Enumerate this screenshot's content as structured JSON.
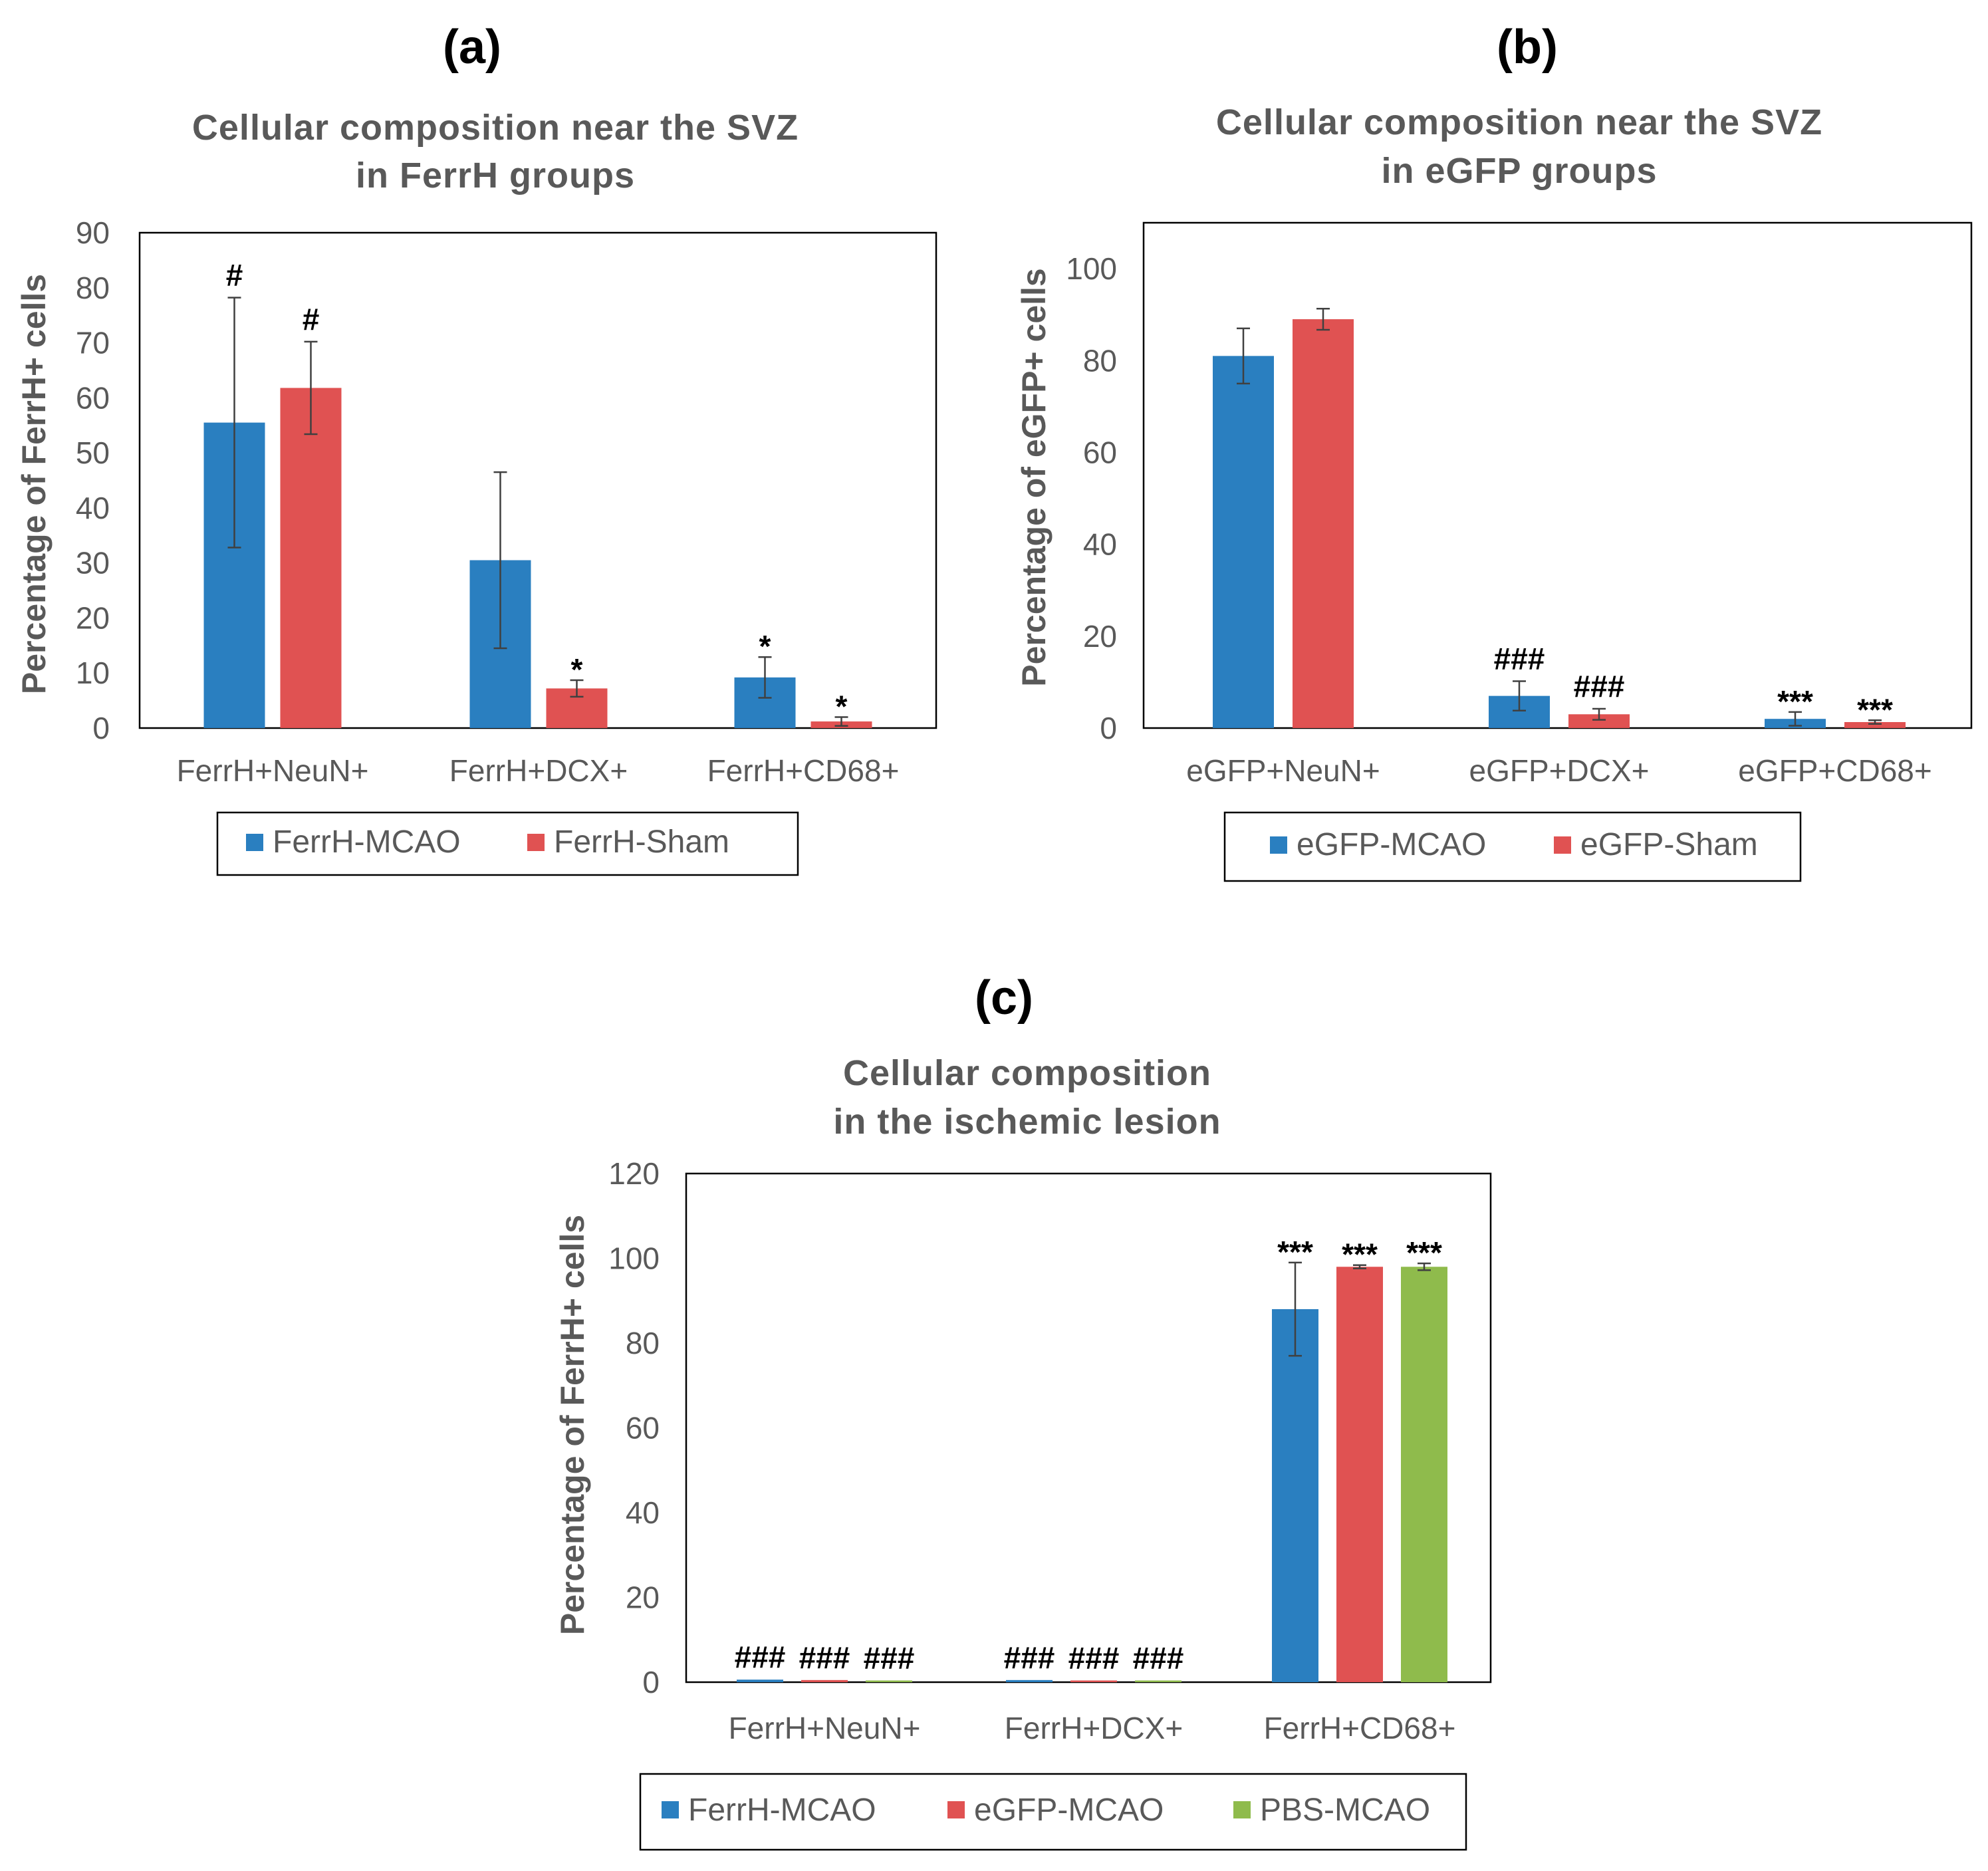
{
  "chart_data": [
    {
      "panel_label": "(a)",
      "type": "bar",
      "title_line1": "Cellular composition near the SVZ",
      "title_line2": "in FerrH groups",
      "ylabel": "Percentage of FerrH+ cells",
      "ylim": [
        0,
        90
      ],
      "yticks": [
        "0",
        "10",
        "20",
        "30",
        "40",
        "50",
        "60",
        "70",
        "80",
        "90"
      ],
      "categories": [
        "FerrH+NeuN+",
        "FerrH+DCX+",
        "FerrH+CD68+"
      ],
      "legend_position": "bottom",
      "series": [
        {
          "name": "FerrH-MCAO",
          "color": "#2a7fc0",
          "values": [
            55.5,
            30.5,
            9.2
          ],
          "errors": [
            22.7,
            16,
            3.7
          ],
          "labels": [
            "#",
            "",
            "*"
          ]
        },
        {
          "name": "FerrH-Sham",
          "color": "#e05252",
          "values": [
            61.8,
            7.2,
            1.2
          ],
          "errors": [
            8.4,
            1.5,
            0.8
          ],
          "labels": [
            "#",
            "*",
            "*"
          ]
        }
      ]
    },
    {
      "panel_label": "(b)",
      "type": "bar",
      "title_line1": "Cellular composition near the SVZ",
      "title_line2": "in eGFP groups",
      "ylabel": "Percentage of eGFP+ cells",
      "ylim": [
        0,
        110
      ],
      "yticks": [
        "0",
        "20",
        "40",
        "60",
        "80",
        "100"
      ],
      "categories": [
        "eGFP+NeuN+",
        "eGFP+DCX+",
        "eGFP+CD68+"
      ],
      "legend_position": "bottom",
      "series": [
        {
          "name": "eGFP-MCAO",
          "color": "#2a7fc0",
          "values": [
            81,
            7,
            2
          ],
          "errors": [
            6,
            3.2,
            1.5
          ],
          "labels": [
            "",
            "###",
            "***"
          ]
        },
        {
          "name": "eGFP-Sham",
          "color": "#e05252",
          "values": [
            89,
            3,
            1.3
          ],
          "errors": [
            2.3,
            1.2,
            0.4
          ],
          "labels": [
            "",
            "###",
            "***"
          ]
        }
      ]
    },
    {
      "panel_label": "(c)",
      "type": "bar",
      "title_line1": "Cellular composition",
      "title_line2": "in the ischemic lesion",
      "ylabel": "Percentage of FerrH+ cells",
      "ylim": [
        0,
        120
      ],
      "yticks": [
        "0",
        "20",
        "40",
        "60",
        "80",
        "100",
        "120"
      ],
      "categories": [
        "FerrH+NeuN+",
        "FerrH+DCX+",
        "FerrH+CD68+"
      ],
      "legend_position": "bottom",
      "series": [
        {
          "name": "FerrH-MCAO",
          "color": "#2a7fc0",
          "values": [
            0.6,
            0.5,
            88
          ],
          "errors": [
            0,
            0,
            11
          ],
          "labels": [
            "###",
            "###",
            "***"
          ]
        },
        {
          "name": "eGFP-MCAO",
          "color": "#e05252",
          "values": [
            0.5,
            0.4,
            98
          ],
          "errors": [
            0,
            0,
            0.4
          ],
          "labels": [
            "###",
            "###",
            "***"
          ]
        },
        {
          "name": "PBS-MCAO",
          "color": "#8fbb4c",
          "values": [
            0.4,
            0.4,
            98
          ],
          "errors": [
            0,
            0,
            0.8
          ],
          "labels": [
            "###",
            "###",
            "***"
          ]
        }
      ]
    }
  ]
}
